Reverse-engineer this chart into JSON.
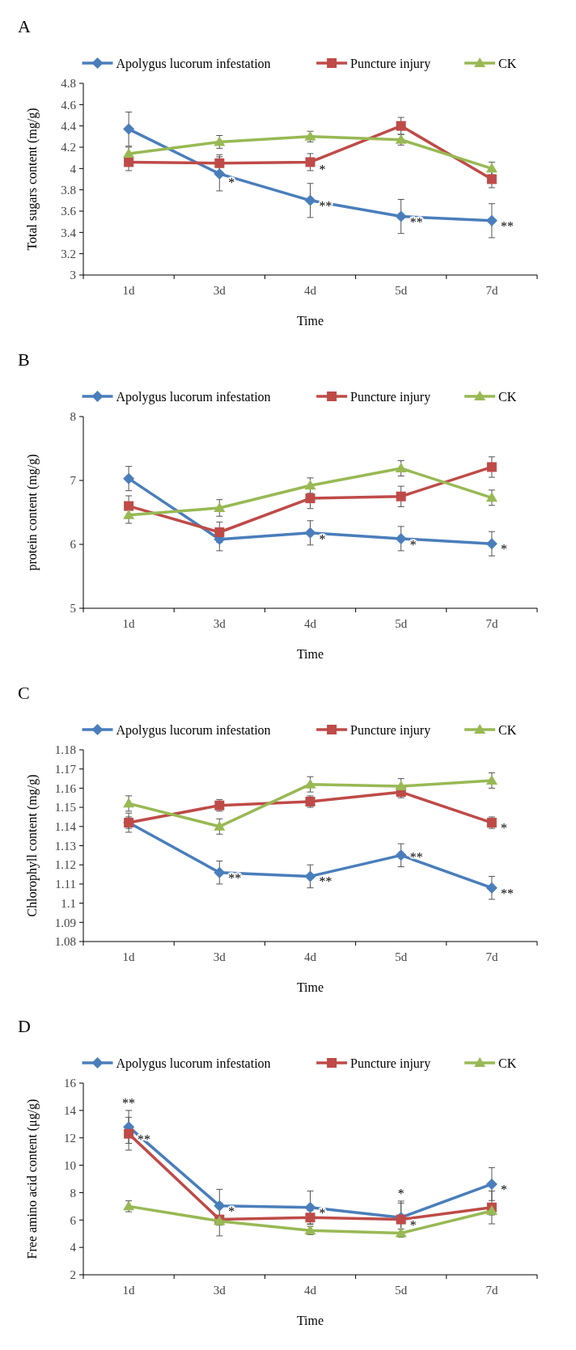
{
  "chart_data": [
    {
      "type": "line",
      "title": "A",
      "xlabel": "Time",
      "ylabel": "Total sugars content (mg/g)",
      "categories": [
        "1d",
        "3d",
        "4d",
        "5d",
        "7d"
      ],
      "ylim": [
        3,
        4.8
      ],
      "yticks": [
        3,
        3.2,
        3.4,
        3.6,
        3.8,
        4,
        4.2,
        4.4,
        4.6,
        4.8
      ],
      "legend": "top",
      "series": [
        {
          "name": "Apolygus lucorum infestation",
          "color": "#4a7ebb",
          "marker": "diamond",
          "values": [
            4.37,
            3.95,
            3.7,
            3.55,
            3.51
          ],
          "errors": [
            0.16,
            0.16,
            0.16,
            0.16,
            0.16
          ]
        },
        {
          "name": "Puncture injury",
          "color": "#be4b48",
          "marker": "square",
          "values": [
            4.06,
            4.05,
            4.06,
            4.4,
            3.9
          ],
          "errors": [
            0.08,
            0.08,
            0.08,
            0.08,
            0.08
          ]
        },
        {
          "name": "CK",
          "color": "#98b954",
          "marker": "triangle",
          "values": [
            4.14,
            4.25,
            4.3,
            4.27,
            4.0
          ],
          "errors": [
            0.06,
            0.06,
            0.05,
            0.05,
            0.06
          ]
        }
      ],
      "annotations": [
        {
          "text": "*",
          "x": "3d",
          "y": 3.92
        },
        {
          "text": "*",
          "x": "4d",
          "y": 4.04
        },
        {
          "text": "**",
          "x": "4d",
          "y": 3.7
        },
        {
          "text": "**",
          "x": "5d",
          "y": 3.55
        },
        {
          "text": "**",
          "x": "7d",
          "y": 3.51
        }
      ]
    },
    {
      "type": "line",
      "title": "B",
      "xlabel": "Time",
      "ylabel": "protein content (mg/g)",
      "categories": [
        "1d",
        "3d",
        "4d",
        "5d",
        "7d"
      ],
      "ylim": [
        5,
        8
      ],
      "yticks": [
        5,
        6,
        7,
        8
      ],
      "legend": "top",
      "series": [
        {
          "name": "Apolygus lucorum infestation",
          "color": "#4a7ebb",
          "marker": "diamond",
          "values": [
            7.03,
            6.08,
            6.18,
            6.09,
            6.01
          ],
          "errors": [
            0.19,
            0.18,
            0.19,
            0.19,
            0.19
          ]
        },
        {
          "name": "Puncture injury",
          "color": "#be4b48",
          "marker": "square",
          "values": [
            6.6,
            6.19,
            6.72,
            6.75,
            7.21
          ],
          "errors": [
            0.16,
            0.16,
            0.16,
            0.16,
            0.16
          ]
        },
        {
          "name": "CK",
          "color": "#98b954",
          "marker": "triangle",
          "values": [
            6.46,
            6.57,
            6.92,
            7.19,
            6.73
          ],
          "errors": [
            0.13,
            0.13,
            0.12,
            0.12,
            0.12
          ]
        }
      ],
      "annotations": [
        {
          "text": "*",
          "x": "4d",
          "y": 6.17
        },
        {
          "text": "*",
          "x": "5d",
          "y": 6.08
        },
        {
          "text": "*",
          "x": "7d",
          "y": 6.01
        }
      ]
    },
    {
      "type": "line",
      "title": "C",
      "xlabel": "Time",
      "ylabel": "Chlorophyll content (mg/g)",
      "categories": [
        "1d",
        "3d",
        "4d",
        "5d",
        "7d"
      ],
      "ylim": [
        1.08,
        1.18
      ],
      "yticks": [
        1.08,
        1.09,
        1.1,
        1.11,
        1.12,
        1.13,
        1.14,
        1.15,
        1.16,
        1.17,
        1.18
      ],
      "legend": "top",
      "series": [
        {
          "name": "Apolygus lucorum infestation",
          "color": "#4a7ebb",
          "marker": "diamond",
          "values": [
            1.142,
            1.116,
            1.114,
            1.125,
            1.108
          ],
          "errors": [
            0.005,
            0.006,
            0.006,
            0.006,
            0.006
          ]
        },
        {
          "name": "Puncture injury",
          "color": "#be4b48",
          "marker": "square",
          "values": [
            1.142,
            1.151,
            1.153,
            1.158,
            1.142
          ],
          "errors": [
            0.003,
            0.003,
            0.003,
            0.003,
            0.003
          ]
        },
        {
          "name": "CK",
          "color": "#98b954",
          "marker": "triangle",
          "values": [
            1.152,
            1.14,
            1.162,
            1.161,
            1.164
          ],
          "errors": [
            0.004,
            0.004,
            0.004,
            0.004,
            0.004
          ]
        }
      ],
      "annotations": [
        {
          "text": "**",
          "x": "3d",
          "y": 1.116
        },
        {
          "text": "**",
          "x": "4d",
          "y": 1.114
        },
        {
          "text": "**",
          "x": "5d",
          "y": 1.127
        },
        {
          "text": "**",
          "x": "7d",
          "y": 1.108
        },
        {
          "text": "*",
          "x": "7d",
          "y": 1.142
        }
      ]
    },
    {
      "type": "line",
      "title": "D",
      "xlabel": "Time",
      "ylabel": "Free amino acid content (μg/g)",
      "categories": [
        "1d",
        "3d",
        "4d",
        "5d",
        "7d"
      ],
      "ylim": [
        2,
        16
      ],
      "yticks": [
        2,
        4,
        6,
        8,
        10,
        12,
        14,
        16
      ],
      "legend": "top",
      "series": [
        {
          "name": "Apolygus lucorum infestation",
          "color": "#4a7ebb",
          "marker": "diamond",
          "values": [
            12.8,
            7.04,
            6.92,
            6.18,
            8.62
          ],
          "errors": [
            1.2,
            1.2,
            1.2,
            1.2,
            1.2
          ]
        },
        {
          "name": "Puncture injury",
          "color": "#be4b48",
          "marker": "square",
          "values": [
            12.3,
            6.04,
            6.18,
            6.04,
            6.92
          ],
          "errors": [
            1.2,
            1.2,
            0.5,
            1.2,
            1.2
          ]
        },
        {
          "name": "CK",
          "color": "#98b954",
          "marker": "triangle",
          "values": [
            7.0,
            5.92,
            5.23,
            5.04,
            6.67
          ],
          "errors": [
            0.4,
            0.3,
            0.3,
            0.3,
            0.3
          ]
        }
      ],
      "annotations": [
        {
          "text": "**",
          "x": "1d",
          "y": 12.8
        },
        {
          "text": "**",
          "x": "1d",
          "y": 12.3
        },
        {
          "text": "*",
          "x": "3d",
          "y": 7.04
        },
        {
          "text": "*",
          "x": "4d",
          "y": 6.92
        },
        {
          "text": "*",
          "x": "5d",
          "y": 6.18
        },
        {
          "text": "*",
          "x": "5d",
          "y": 6.04
        },
        {
          "text": "*",
          "x": "7d",
          "y": 8.62
        }
      ]
    }
  ]
}
